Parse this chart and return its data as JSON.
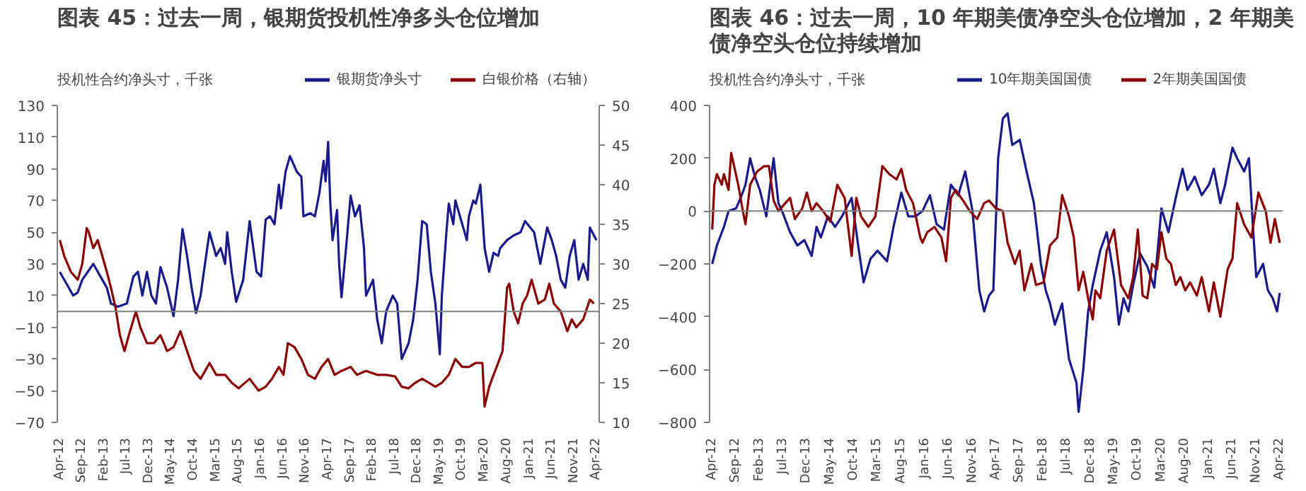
{
  "chart_data": [
    {
      "type": "line",
      "title": "图表 45：过去一周，银期货投机性净多头仓位增加",
      "ylabel": "投机性合约净头寸，千张",
      "legend": "top",
      "grid": false,
      "xlim": [
        "2012-03-15",
        "2022-04-20"
      ],
      "xticks": [
        {
          "value": "2012-04-01",
          "label": "Apr-12"
        },
        {
          "value": "2012-09-01",
          "label": "Sep-12"
        },
        {
          "value": "2013-02-01",
          "label": "Feb-13"
        },
        {
          "value": "2013-07-01",
          "label": "Jul-13"
        },
        {
          "value": "2013-12-01",
          "label": "Dec-13"
        },
        {
          "value": "2014-05-01",
          "label": "May-14"
        },
        {
          "value": "2014-10-01",
          "label": "Oct-14"
        },
        {
          "value": "2015-03-01",
          "label": "Mar-15"
        },
        {
          "value": "2015-08-01",
          "label": "Aug-15"
        },
        {
          "value": "2016-01-01",
          "label": "Jan-16"
        },
        {
          "value": "2016-06-01",
          "label": "Jun-16"
        },
        {
          "value": "2016-11-01",
          "label": "Nov-16"
        },
        {
          "value": "2017-04-01",
          "label": "Apr-17"
        },
        {
          "value": "2017-09-01",
          "label": "Sep-17"
        },
        {
          "value": "2018-02-01",
          "label": "Feb-18"
        },
        {
          "value": "2018-07-01",
          "label": "Jul-18"
        },
        {
          "value": "2018-12-01",
          "label": "Dec-18"
        },
        {
          "value": "2019-05-01",
          "label": "May-19"
        },
        {
          "value": "2019-10-01",
          "label": "Oct-19"
        },
        {
          "value": "2020-03-01",
          "label": "Mar-20"
        },
        {
          "value": "2020-08-01",
          "label": "Aug-20"
        },
        {
          "value": "2021-01-01",
          "label": "Jan-21"
        },
        {
          "value": "2021-06-01",
          "label": "Jun-21"
        },
        {
          "value": "2021-11-01",
          "label": "Nov-21"
        },
        {
          "value": "2022-04-01",
          "label": "Apr-22"
        }
      ],
      "ylim": [
        -70,
        130
      ],
      "yticks": [
        -70,
        -50,
        -30,
        -10,
        10,
        30,
        50,
        70,
        90,
        110,
        130
      ],
      "y2lim": [
        10,
        50
      ],
      "y2ticks": [
        10,
        15,
        20,
        25,
        30,
        35,
        40,
        45,
        50
      ],
      "ref_lines": [
        {
          "axis": "y",
          "value": 0,
          "color": "#808080"
        }
      ],
      "series": [
        {
          "name": "银期货净头寸",
          "color": "#1a1a8c",
          "x": [
            "2012-04",
            "2012-07",
            "2012-08",
            "2012-09",
            "2012-11-15",
            "2013-02-15",
            "2013-03-15",
            "2013-05",
            "2013-07",
            "2013-08-15",
            "2013-09-15",
            "2013-10-15",
            "2013-11-15",
            "2013-12-15",
            "2014-01-15",
            "2014-02-15",
            "2014-04",
            "2014-05-15",
            "2014-06-15",
            "2014-07-15",
            "2014-08-15",
            "2014-09-15",
            "2014-10-15",
            "2014-11-15",
            "2014-12-15",
            "2015-01-15",
            "2015-03",
            "2015-04",
            "2015-05",
            "2015-05-15",
            "2015-06-15",
            "2015-07-15",
            "2015-09",
            "2015-10-15",
            "2015-12",
            "2016-01",
            "2016-02",
            "2016-03",
            "2016-04",
            "2016-05",
            "2016-05-15",
            "2016-06-15",
            "2016-07-15",
            "2016-09",
            "2016-10",
            "2016-10-15",
            "2016-12",
            "2017-01",
            "2017-02",
            "2017-03",
            "2017-03-15",
            "2017-04",
            "2017-04-15",
            "2017-05",
            "2017-06",
            "2017-06-15",
            "2017-07",
            "2017-08",
            "2017-09",
            "2017-10",
            "2017-11",
            "2017-12",
            "2017-12-15",
            "2018-02",
            "2018-03",
            "2018-04",
            "2018-05",
            "2018-06-15",
            "2018-07-15",
            "2018-08-15",
            "2018-10",
            "2018-11",
            "2018-12",
            "2019-01",
            "2019-02",
            "2019-03",
            "2019-04",
            "2019-05",
            "2019-05-15",
            "2019-06-15",
            "2019-07",
            "2019-08",
            "2019-08-15",
            "2019-10",
            "2019-11",
            "2019-11-15",
            "2019-12-15",
            "2020-01",
            "2020-02",
            "2020-03",
            "2020-04",
            "2020-05",
            "2020-06",
            "2020-06-15",
            "2020-08",
            "2020-09-15",
            "2020-11",
            "2020-12",
            "2021-02",
            "2021-03-15",
            "2021-05",
            "2021-06",
            "2021-07",
            "2021-08",
            "2021-09",
            "2021-10",
            "2021-11",
            "2021-12",
            "2022-01",
            "2022-02",
            "2022-02-15",
            "2022-04"
          ],
          "values": [
            25,
            10,
            12,
            20,
            30,
            15,
            5,
            3,
            5,
            22,
            25,
            10,
            25,
            10,
            5,
            28,
            15,
            -3,
            20,
            52,
            35,
            15,
            -1,
            10,
            30,
            50,
            35,
            40,
            30,
            50,
            25,
            6,
            20,
            57,
            25,
            22,
            58,
            60,
            55,
            80,
            65,
            88,
            98,
            88,
            85,
            60,
            62,
            60,
            75,
            95,
            82,
            107,
            70,
            45,
            64,
            30,
            9,
            40,
            73,
            60,
            67,
            40,
            10,
            20,
            -5,
            -20,
            0,
            10,
            5,
            -30,
            -20,
            -5,
            20,
            57,
            55,
            25,
            5,
            -27,
            10,
            50,
            68,
            55,
            70,
            55,
            45,
            60,
            70,
            68,
            80,
            40,
            25,
            37,
            35,
            40,
            45,
            48,
            50,
            57,
            50,
            30,
            53,
            45,
            35,
            20,
            15,
            35,
            45,
            20,
            30,
            20,
            53,
            45
          ]
        },
        {
          "name": "白银价格（右轴）",
          "color": "#8b0000",
          "axis": "y2",
          "x": [
            "2012-04",
            "2012-05",
            "2012-06-15",
            "2012-08",
            "2012-09",
            "2012-10",
            "2012-10-15",
            "2012-11-15",
            "2012-12-15",
            "2013-01-15",
            "2013-02-15",
            "2013-03-15",
            "2013-04-15",
            "2013-05-15",
            "2013-06-15",
            "2013-07-15",
            "2013-09",
            "2013-10",
            "2013-11-15",
            "2014-01",
            "2014-02-15",
            "2014-04",
            "2014-05-15",
            "2014-07",
            "2014-08-15",
            "2014-10",
            "2014-11-15",
            "2015-01-15",
            "2015-03",
            "2015-05",
            "2015-06-15",
            "2015-08",
            "2015-10-15",
            "2015-12-15",
            "2016-02",
            "2016-03-15",
            "2016-05",
            "2016-06",
            "2016-07",
            "2016-08-15",
            "2016-10",
            "2016-11-15",
            "2017-01",
            "2017-02-15",
            "2017-04",
            "2017-05-15",
            "2017-07",
            "2017-09",
            "2017-10-15",
            "2017-12-15",
            "2018-03",
            "2018-05",
            "2018-07",
            "2018-08-15",
            "2018-10",
            "2018-11-15",
            "2019-01",
            "2019-02-15",
            "2019-04",
            "2019-05-15",
            "2019-07",
            "2019-08-15",
            "2019-10",
            "2019-11-15",
            "2020-01",
            "2020-02-15",
            "2020-03",
            "2020-04",
            "2020-05",
            "2020-06",
            "2020-07",
            "2020-08",
            "2020-08-15",
            "2020-09-15",
            "2020-10-15",
            "2020-11-15",
            "2020-12-15",
            "2021-01-15",
            "2021-03",
            "2021-04-15",
            "2021-05-15",
            "2021-06-15",
            "2021-08",
            "2021-09-15",
            "2021-10-15",
            "2021-11-15",
            "2022-01",
            "2022-02-15",
            "2022-03-15"
          ],
          "values": [
            33,
            31,
            29,
            28,
            30,
            34.5,
            34,
            32,
            33,
            31,
            29,
            27,
            24.5,
            21,
            19,
            21,
            24,
            22,
            20,
            20,
            21,
            19,
            19.5,
            21.5,
            19,
            16.5,
            15.5,
            17.5,
            16,
            16,
            15,
            14.3,
            15.5,
            14,
            14.5,
            15.5,
            17,
            16,
            20,
            19.5,
            18,
            16,
            15.5,
            17,
            18,
            16,
            16.5,
            17,
            16,
            16.5,
            16,
            16,
            15.8,
            14.5,
            14.3,
            15,
            15.5,
            15,
            14.5,
            15,
            16,
            18,
            17,
            17,
            17.5,
            17.5,
            12,
            14.5,
            16,
            17.5,
            19,
            27,
            27.5,
            24,
            22.5,
            25,
            26,
            28,
            25,
            25.5,
            27.5,
            25,
            24,
            21.5,
            23,
            22,
            23,
            25.5,
            25
          ]
        }
      ]
    },
    {
      "type": "line",
      "title": "图表 46：过去一周，10 年期美债净空头仓位增加，2 年期美债净空头仓位持续增加",
      "ylabel": "投机性合约净头寸，千张",
      "legend": "top",
      "grid": false,
      "xlim": [
        "2012-03-15",
        "2022-04-20"
      ],
      "xticks": [
        {
          "value": "2012-04-01",
          "label": "Apr-12"
        },
        {
          "value": "2012-09-01",
          "label": "Sep-12"
        },
        {
          "value": "2013-02-01",
          "label": "Feb-13"
        },
        {
          "value": "2013-07-01",
          "label": "Jul-13"
        },
        {
          "value": "2013-12-01",
          "label": "Dec-13"
        },
        {
          "value": "2014-05-01",
          "label": "May-14"
        },
        {
          "value": "2014-10-01",
          "label": "Oct-14"
        },
        {
          "value": "2015-03-01",
          "label": "Mar-15"
        },
        {
          "value": "2015-08-01",
          "label": "Aug-15"
        },
        {
          "value": "2016-01-01",
          "label": "Jan-16"
        },
        {
          "value": "2016-06-01",
          "label": "Jun-16"
        },
        {
          "value": "2016-11-01",
          "label": "Nov-16"
        },
        {
          "value": "2017-04-01",
          "label": "Apr-17"
        },
        {
          "value": "2017-09-01",
          "label": "Sep-17"
        },
        {
          "value": "2018-02-01",
          "label": "Feb-18"
        },
        {
          "value": "2018-07-01",
          "label": "Jul-18"
        },
        {
          "value": "2018-12-01",
          "label": "Dec-18"
        },
        {
          "value": "2019-05-01",
          "label": "May-19"
        },
        {
          "value": "2019-10-01",
          "label": "Oct-19"
        },
        {
          "value": "2020-03-01",
          "label": "Mar-20"
        },
        {
          "value": "2020-08-01",
          "label": "Aug-20"
        },
        {
          "value": "2021-01-01",
          "label": "Jan-21"
        },
        {
          "value": "2021-06-01",
          "label": "Jun-21"
        },
        {
          "value": "2021-11-01",
          "label": "Nov-21"
        },
        {
          "value": "2022-04-01",
          "label": "Apr-22"
        }
      ],
      "ylim": [
        -800,
        400
      ],
      "yticks": [
        -800,
        -600,
        -400,
        -200,
        0,
        200,
        400
      ],
      "ref_lines": [
        {
          "axis": "y",
          "value": 0,
          "color": "#808080"
        }
      ],
      "series": [
        {
          "name": "10年期美国国债",
          "color": "#1a1a8c",
          "x": [
            "2012-04",
            "2012-05",
            "2012-06-15",
            "2012-07-15",
            "2012-09",
            "2012-10",
            "2012-11",
            "2012-12",
            "2013-01",
            "2013-02",
            "2013-03-15",
            "2013-05",
            "2013-06",
            "2013-07",
            "2013-08-15",
            "2013-10",
            "2013-11-15",
            "2014-01",
            "2014-02",
            "2014-03",
            "2014-04-15",
            "2014-06",
            "2014-07-15",
            "2014-09-15",
            "2014-11",
            "2014-12",
            "2015-01-15",
            "2015-03",
            "2015-05",
            "2015-06-15",
            "2015-08",
            "2015-09-15",
            "2015-11",
            "2015-12-15",
            "2016-02",
            "2016-03-15",
            "2016-05",
            "2016-06-15",
            "2016-08",
            "2016-09-15",
            "2016-11",
            "2016-12-15",
            "2017-01-15",
            "2017-02-15",
            "2017-03-15",
            "2017-04-15",
            "2017-05-15",
            "2017-06-15",
            "2017-07-15",
            "2017-09",
            "2017-10-15",
            "2017-12",
            "2018-01-15",
            "2018-02-15",
            "2018-03-15",
            "2018-04-15",
            "2018-06",
            "2018-07-15",
            "2018-09",
            "2018-09-15",
            "2018-10-15",
            "2018-11-15",
            "2018-12-15",
            "2019-02",
            "2019-03-15",
            "2019-05",
            "2019-06",
            "2019-07",
            "2019-08",
            "2019-09",
            "2019-10-15",
            "2019-12",
            "2020-01-15",
            "2020-03",
            "2020-04-15",
            "2020-06",
            "2020-07-15",
            "2020-08-15",
            "2020-10",
            "2020-11-15",
            "2021-01",
            "2021-02",
            "2021-03-15",
            "2021-04-15",
            "2021-05",
            "2021-06",
            "2021-07",
            "2021-08-15",
            "2021-09-15",
            "2021-10-15",
            "2021-11",
            "2021-12-15",
            "2022-01-15",
            "2022-02-15",
            "2022-03-15",
            "2022-04"
          ],
          "values": [
            -200,
            -130,
            -60,
            0,
            10,
            50,
            100,
            200,
            130,
            80,
            -20,
            200,
            30,
            -10,
            -80,
            -130,
            -110,
            -170,
            -60,
            -100,
            -20,
            -60,
            -20,
            50,
            -150,
            -270,
            -180,
            -150,
            -190,
            -50,
            70,
            -20,
            -20,
            0,
            60,
            -50,
            -70,
            100,
            60,
            150,
            0,
            -300,
            -380,
            -320,
            -300,
            200,
            350,
            370,
            250,
            270,
            150,
            30,
            -200,
            -300,
            -350,
            -430,
            -350,
            -560,
            -650,
            -760,
            -600,
            -380,
            -280,
            -150,
            -80,
            -250,
            -430,
            -330,
            -380,
            -280,
            -160,
            -210,
            -290,
            10,
            -80,
            50,
            160,
            80,
            130,
            60,
            100,
            160,
            30,
            100,
            150,
            240,
            200,
            150,
            200,
            -100,
            -250,
            -200,
            -300,
            -330,
            -380,
            -310
          ]
        },
        {
          "name": "2年期美国国债",
          "color": "#8b0000",
          "x": [
            "2012-04",
            "2012-04-15",
            "2012-05",
            "2012-06",
            "2012-06-15",
            "2012-07-15",
            "2012-08",
            "2012-09-15",
            "2012-10-15",
            "2012-11",
            "2012-12",
            "2013-01-15",
            "2013-03",
            "2013-04",
            "2013-05",
            "2013-06",
            "2013-07-15",
            "2013-08-15",
            "2013-09-15",
            "2013-11",
            "2013-12",
            "2014-01",
            "2014-02",
            "2014-03-15",
            "2014-05",
            "2014-06-15",
            "2014-08",
            "2014-09-15",
            "2014-10-15",
            "2014-11-15",
            "2015-01",
            "2015-02-15",
            "2015-04",
            "2015-05-15",
            "2015-07",
            "2015-08",
            "2015-09",
            "2015-10-15",
            "2015-12",
            "2015-12-15",
            "2016-01-15",
            "2016-03",
            "2016-04-15",
            "2016-05-15",
            "2016-06-15",
            "2016-07-15",
            "2016-09",
            "2016-10-15",
            "2016-12",
            "2017-01-15",
            "2017-02-15",
            "2017-04",
            "2017-05-15",
            "2017-06-15",
            "2017-08",
            "2017-09",
            "2017-10",
            "2017-11-15",
            "2017-12-15",
            "2018-02",
            "2018-03-15",
            "2018-05",
            "2018-06",
            "2018-07-15",
            "2018-08-15",
            "2018-09-15",
            "2018-10-15",
            "2018-11-15",
            "2018-12-15",
            "2019-01",
            "2019-02",
            "2019-03-15",
            "2019-05",
            "2019-06-15",
            "2019-08",
            "2019-09",
            "2019-10",
            "2019-11",
            "2019-12",
            "2020-01",
            "2020-02",
            "2020-03",
            "2020-04",
            "2020-05",
            "2020-06",
            "2020-07",
            "2020-08",
            "2020-09",
            "2020-10-15",
            "2020-11-15",
            "2021-01",
            "2021-02",
            "2021-03-15",
            "2021-05",
            "2021-06",
            "2021-07",
            "2021-08-15",
            "2021-10",
            "2021-11-15",
            "2022-01",
            "2022-02",
            "2022-03",
            "2022-04"
          ],
          "values": [
            -70,
            100,
            140,
            100,
            140,
            80,
            220,
            100,
            0,
            -50,
            100,
            150,
            170,
            170,
            40,
            0,
            30,
            50,
            -30,
            10,
            70,
            0,
            30,
            0,
            -40,
            100,
            50,
            -170,
            50,
            -20,
            -60,
            -20,
            170,
            140,
            120,
            160,
            80,
            30,
            -100,
            -120,
            -80,
            -60,
            -100,
            -190,
            50,
            80,
            40,
            0,
            -30,
            30,
            40,
            10,
            0,
            -120,
            -200,
            -150,
            -300,
            -200,
            -280,
            -270,
            -130,
            -100,
            60,
            -20,
            -100,
            -300,
            -230,
            -330,
            -410,
            -300,
            -330,
            -150,
            -70,
            -280,
            -330,
            -250,
            -70,
            -320,
            -330,
            -200,
            -220,
            -80,
            -180,
            -200,
            -280,
            -250,
            -300,
            -270,
            -320,
            -250,
            -380,
            -270,
            -400,
            -220,
            -180,
            30,
            -50,
            -100,
            70,
            0,
            -120,
            -30,
            -120
          ]
        }
      ]
    }
  ]
}
